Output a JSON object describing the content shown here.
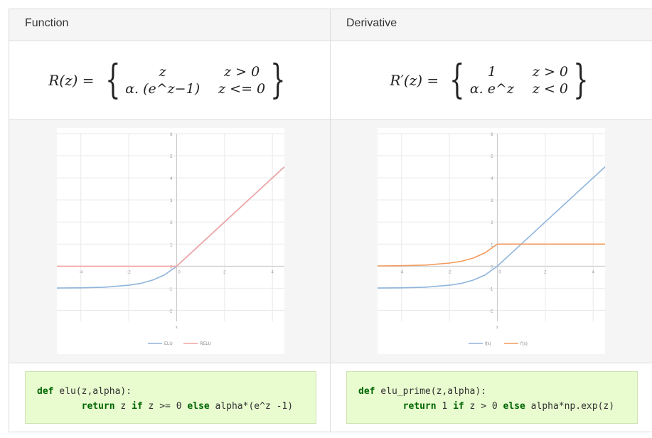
{
  "table": {
    "header": {
      "function": "Function",
      "derivative": "Derivative"
    },
    "formula_left": {
      "lhs": "R(z) =",
      "case1_expr": "z",
      "case1_cond": "z > 0",
      "case2_expr": "α. (e^z−1)",
      "case2_cond": "z <= 0"
    },
    "formula_right": {
      "lhs": "R′(z) =",
      "case1_expr": "1",
      "case1_cond": "z > 0",
      "case2_expr": "α. e^z",
      "case2_cond": "z < 0"
    },
    "code_left": {
      "line1_kw": "def",
      "line1_rest": " elu(z,alpha):",
      "line2_kw1": "return",
      "line2_a": " z ",
      "line2_kw2": "if",
      "line2_b": " z >= 0 ",
      "line2_kw3": "else",
      "line2_c": " alpha*(e^z -1)"
    },
    "code_right": {
      "line1_kw": "def",
      "line1_rest": " elu_prime(z,alpha):",
      "line2_kw1": "return",
      "line2_a": " 1 ",
      "line2_kw2": "if",
      "line2_b": " z > 0 ",
      "line2_kw3": "else",
      "line2_c": " alpha*np.exp(z)"
    }
  },
  "chart_data": [
    {
      "type": "line",
      "xlabel": "x",
      "xlim": [
        -5,
        4.5
      ],
      "ylim": [
        -2.5,
        6
      ],
      "xticks": [
        -4,
        -2,
        0,
        2,
        4
      ],
      "yticks": [
        -2,
        -1,
        0,
        1,
        2,
        3,
        4,
        5,
        6
      ],
      "legend": "bottom",
      "series": [
        {
          "name": "ELU",
          "color": "#8eb4dc",
          "x": [
            -5,
            -4,
            -3,
            -2,
            -1.5,
            -1,
            -0.5,
            0,
            1,
            2,
            3,
            4,
            4.5
          ],
          "y": [
            -0.99,
            -0.98,
            -0.95,
            -0.86,
            -0.78,
            -0.63,
            -0.39,
            0,
            1,
            2,
            3,
            4,
            4.5
          ]
        },
        {
          "name": "RELU",
          "color": "#f2a3a3",
          "x": [
            -5,
            0,
            4.5
          ],
          "y": [
            0,
            0,
            4.5
          ]
        }
      ]
    },
    {
      "type": "line",
      "xlabel": "x",
      "xlim": [
        -5,
        4.5
      ],
      "ylim": [
        -2.5,
        6
      ],
      "xticks": [
        -4,
        -2,
        0,
        2,
        4
      ],
      "yticks": [
        -2,
        -1,
        0,
        1,
        2,
        3,
        4,
        5,
        6
      ],
      "legend": "bottom",
      "series": [
        {
          "name": "f(x)",
          "color": "#8eb4dc",
          "x": [
            -5,
            -4,
            -3,
            -2,
            -1.5,
            -1,
            -0.5,
            0,
            1,
            2,
            3,
            4,
            4.5
          ],
          "y": [
            -0.99,
            -0.98,
            -0.95,
            -0.86,
            -0.78,
            -0.63,
            -0.39,
            0,
            1,
            2,
            3,
            4,
            4.5
          ]
        },
        {
          "name": "f'(x)",
          "color": "#f29a5c",
          "x": [
            -5,
            -4,
            -3,
            -2,
            -1.5,
            -1,
            -0.5,
            0,
            1,
            2,
            3,
            4,
            4.5
          ],
          "y": [
            0.01,
            0.02,
            0.05,
            0.14,
            0.22,
            0.37,
            0.61,
            1,
            1,
            1,
            1,
            1,
            1
          ]
        }
      ]
    }
  ]
}
